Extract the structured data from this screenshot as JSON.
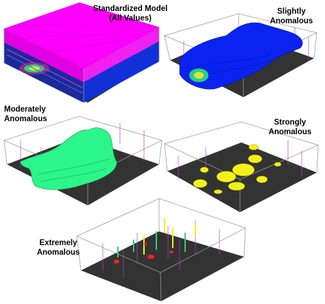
{
  "panels": [
    {
      "label_line1": "Standardized Model",
      "label_line2": "(All Values)",
      "color": "#ff00ff"
    },
    {
      "label_line1": "Slightly",
      "label_line2": "Anomalous",
      "color": "#0a23f0"
    },
    {
      "label_line1": "Moderately",
      "label_line2": "Anomalous",
      "color": "#2cf58a"
    },
    {
      "label_line1": "Strongly",
      "label_line2": "Anomalous",
      "color": "#f2f21a"
    },
    {
      "label_line1": "Extremely",
      "label_line2": "Anomalous",
      "color": "#ff2020"
    }
  ],
  "colors": {
    "floor": "#333333",
    "box_line": "#9a9a9a",
    "drillhole": "#c03cc0"
  }
}
